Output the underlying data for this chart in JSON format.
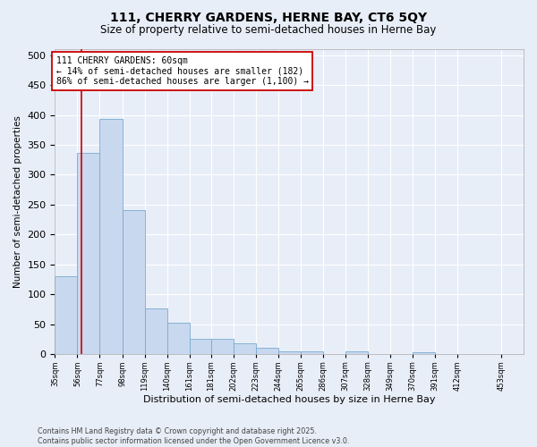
{
  "title": "111, CHERRY GARDENS, HERNE BAY, CT6 5QY",
  "subtitle": "Size of property relative to semi-detached houses in Herne Bay",
  "xlabel": "Distribution of semi-detached houses by size in Herne Bay",
  "ylabel": "Number of semi-detached properties",
  "bar_color": "#c8d8ee",
  "bar_edge_color": "#7aaad0",
  "bar_values": [
    131,
    336,
    393,
    241,
    77,
    52,
    26,
    26,
    18,
    10,
    5,
    5,
    0,
    4,
    0,
    0,
    3,
    0,
    0
  ],
  "bin_labels": [
    "35sqm",
    "56sqm",
    "77sqm",
    "98sqm",
    "119sqm",
    "140sqm",
    "161sqm",
    "181sqm",
    "202sqm",
    "223sqm",
    "244sqm",
    "265sqm",
    "286sqm",
    "307sqm",
    "328sqm",
    "349sqm",
    "370sqm",
    "391sqm",
    "412sqm",
    "453sqm"
  ],
  "bin_edges": [
    35,
    56,
    77,
    98,
    119,
    140,
    161,
    181,
    202,
    223,
    244,
    265,
    286,
    307,
    328,
    349,
    370,
    391,
    412,
    453
  ],
  "n_bins": 19,
  "property_size": 60,
  "property_line_color": "#cc0000",
  "annotation_text": "111 CHERRY GARDENS: 60sqm\n← 14% of semi-detached houses are smaller (182)\n86% of semi-detached houses are larger (1,100) →",
  "annotation_box_color": "#ffffff",
  "annotation_box_edge_color": "#cc0000",
  "footer_text": "Contains HM Land Registry data © Crown copyright and database right 2025.\nContains public sector information licensed under the Open Government Licence v3.0.",
  "background_color": "#e8eef8",
  "plot_bg_color": "#e8eef8",
  "ylim": [
    0,
    510
  ],
  "yticks": [
    0,
    50,
    100,
    150,
    200,
    250,
    300,
    350,
    400,
    450,
    500
  ],
  "grid_color": "#ffffff"
}
